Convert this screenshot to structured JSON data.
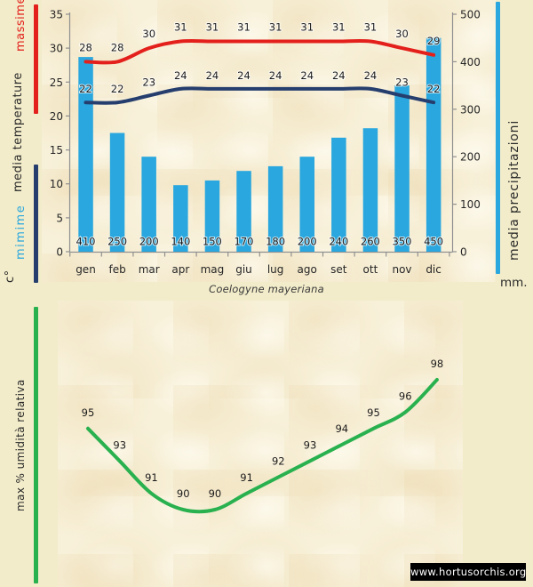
{
  "page": {
    "watermark": "www.hortusorchis.org"
  },
  "labels": {
    "massime": "massime",
    "media_temperature": "media temperature",
    "mimime": "mimime",
    "celsius_unit": "c°",
    "media_precipitazioni": "media precipitazioni",
    "mm_unit": "mm.",
    "humidity_axis": "max % umidità relativa"
  },
  "colors": {
    "page_bg": "#f2ecca",
    "panel_bg": "#f8f1da",
    "bar": "#29a7de",
    "max_line": "#e3201b",
    "min_line": "#253e6e",
    "humidity_line": "#29b14f",
    "axis": "#8f8f8f",
    "watermark_bg": "#000000",
    "watermark_text": "#ffffff"
  },
  "chart_data": [
    {
      "type": "bar",
      "title": "Coelogyne mayeriana",
      "categories": [
        "gen",
        "feb",
        "mar",
        "apr",
        "mag",
        "giu",
        "lug",
        "ago",
        "set",
        "ott",
        "nov",
        "dic"
      ],
      "series": [
        {
          "name": "massime",
          "kind": "line",
          "axis": "left",
          "values": [
            28,
            28,
            30,
            31,
            31,
            31,
            31,
            31,
            31,
            31,
            30,
            29
          ]
        },
        {
          "name": "mimime",
          "kind": "line",
          "axis": "left",
          "values": [
            22,
            22,
            23,
            24,
            24,
            24,
            24,
            24,
            24,
            24,
            23,
            22
          ]
        },
        {
          "name": "media precipitazioni",
          "kind": "bar",
          "axis": "right",
          "values": [
            410,
            250,
            200,
            140,
            150,
            170,
            180,
            200,
            240,
            260,
            350,
            450
          ]
        }
      ],
      "left_axis": {
        "title": "media temperature",
        "unit": "c°",
        "min": 0,
        "max": 35,
        "step": 5
      },
      "right_axis": {
        "title": "media precipitazioni",
        "unit": "mm.",
        "min": 0,
        "max": 500,
        "step": 100
      },
      "grid": false,
      "legend": "left-and-right-sidebars"
    },
    {
      "type": "line",
      "ylabel": "max % umidità relativa",
      "values": [
        95,
        93,
        91,
        90,
        90,
        91,
        92,
        93,
        94,
        95,
        96,
        98
      ],
      "grid": false,
      "axes_hidden": true
    }
  ]
}
